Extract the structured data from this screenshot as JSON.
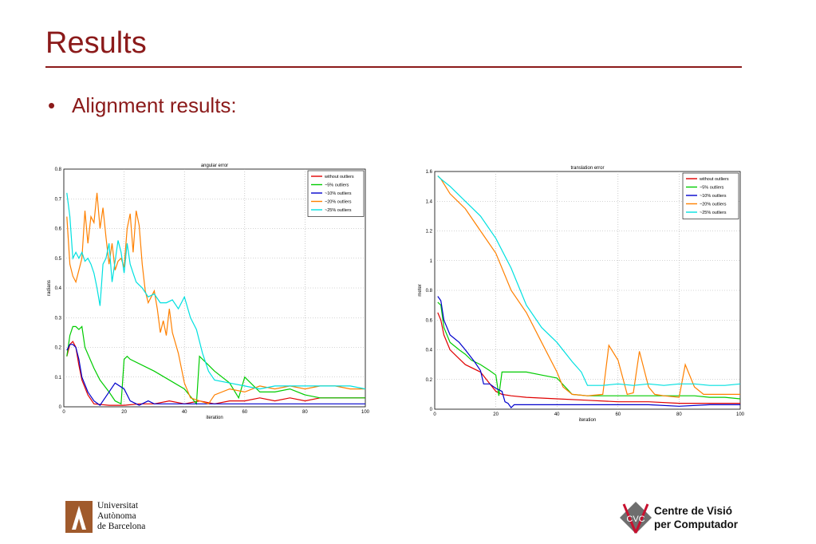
{
  "slide": {
    "title": "Results",
    "bullet": "•",
    "bullet_text": "Alignment results:",
    "title_color": "#8b1a1a"
  },
  "footer": {
    "uab_line1": "Universitat",
    "uab_line2": "Autònoma",
    "uab_line3": "de Barcelona",
    "cvc_line1": "Centre de Visió",
    "cvc_line2": "per Computador",
    "cvc_logo_letters": "CVC"
  },
  "chart_data": [
    {
      "type": "line",
      "title": "angular error",
      "xlabel": "iteration",
      "ylabel": "radians",
      "xlim": [
        0,
        100
      ],
      "ylim": [
        0,
        0.8
      ],
      "xticks": [
        0,
        20,
        40,
        60,
        80,
        100
      ],
      "yticks": [
        0,
        0.1,
        0.2,
        0.3,
        0.4,
        0.5,
        0.6,
        0.7,
        0.8
      ],
      "ytick_labels": [
        "0",
        "0.1",
        "0.2",
        "0.3",
        "0.4",
        "0.5",
        "0.6",
        "0.7",
        "0.8"
      ],
      "grid": true,
      "legend_position": "top-right",
      "series": [
        {
          "name": "without outliers",
          "color": "#e00000",
          "x": [
            1,
            2,
            3,
            4,
            5,
            6,
            8,
            10,
            15,
            20,
            25,
            30,
            35,
            40,
            45,
            50,
            55,
            60,
            65,
            70,
            75,
            80,
            85,
            90,
            95,
            100
          ],
          "y": [
            0.17,
            0.21,
            0.22,
            0.2,
            0.14,
            0.09,
            0.04,
            0.01,
            0.005,
            0.005,
            0.01,
            0.01,
            0.02,
            0.01,
            0.02,
            0.01,
            0.02,
            0.02,
            0.03,
            0.02,
            0.03,
            0.02,
            0.03,
            0.03,
            0.03,
            0.03
          ]
        },
        {
          "name": "~5% outliers",
          "color": "#00cc00",
          "x": [
            1,
            2,
            3,
            4,
            5,
            6,
            7,
            10,
            12,
            15,
            17,
            19,
            20,
            21,
            22,
            30,
            40,
            44,
            45,
            47,
            50,
            55,
            58,
            60,
            65,
            70,
            75,
            80,
            85,
            90,
            95,
            100
          ],
          "y": [
            0.17,
            0.24,
            0.27,
            0.27,
            0.26,
            0.27,
            0.2,
            0.13,
            0.09,
            0.05,
            0.02,
            0.01,
            0.16,
            0.17,
            0.16,
            0.12,
            0.06,
            0.01,
            0.17,
            0.15,
            0.12,
            0.08,
            0.03,
            0.1,
            0.05,
            0.05,
            0.06,
            0.04,
            0.03,
            0.03,
            0.03,
            0.03
          ]
        },
        {
          "name": "~10% outliers",
          "color": "#0000cc",
          "x": [
            1,
            2,
            3,
            4,
            5,
            6,
            8,
            10,
            12,
            15,
            17,
            20,
            22,
            25,
            28,
            30,
            35,
            40,
            50,
            60,
            70,
            80,
            90,
            100
          ],
          "y": [
            0.19,
            0.21,
            0.21,
            0.2,
            0.16,
            0.1,
            0.05,
            0.02,
            0.005,
            0.05,
            0.08,
            0.06,
            0.02,
            0.005,
            0.02,
            0.01,
            0.01,
            0.01,
            0.01,
            0.01,
            0.01,
            0.01,
            0.01,
            0.01
          ]
        },
        {
          "name": "~20% outliers",
          "color": "#ff8000",
          "x": [
            1,
            2,
            3,
            4,
            5,
            6,
            7,
            8,
            9,
            10,
            11,
            12,
            13,
            14,
            15,
            16,
            17,
            18,
            19,
            20,
            21,
            22,
            23,
            24,
            25,
            26,
            27,
            28,
            29,
            30,
            31,
            32,
            33,
            34,
            35,
            36,
            38,
            40,
            42,
            45,
            48,
            50,
            55,
            60,
            65,
            70,
            75,
            80,
            85,
            90,
            95,
            100
          ],
          "y": [
            0.64,
            0.48,
            0.44,
            0.42,
            0.46,
            0.5,
            0.66,
            0.55,
            0.64,
            0.62,
            0.72,
            0.6,
            0.67,
            0.57,
            0.48,
            0.55,
            0.46,
            0.49,
            0.5,
            0.47,
            0.6,
            0.65,
            0.52,
            0.66,
            0.61,
            0.48,
            0.39,
            0.35,
            0.37,
            0.39,
            0.33,
            0.25,
            0.29,
            0.24,
            0.33,
            0.25,
            0.18,
            0.08,
            0.03,
            0.02,
            0.01,
            0.04,
            0.06,
            0.05,
            0.07,
            0.06,
            0.07,
            0.06,
            0.07,
            0.07,
            0.06,
            0.06
          ]
        },
        {
          "name": "~25% outliers",
          "color": "#00e0e0",
          "x": [
            1,
            2,
            3,
            4,
            5,
            6,
            7,
            8,
            9,
            10,
            11,
            12,
            13,
            14,
            15,
            16,
            17,
            18,
            19,
            20,
            21,
            22,
            23,
            24,
            25,
            26,
            28,
            30,
            32,
            34,
            36,
            38,
            40,
            42,
            44,
            46,
            48,
            50,
            55,
            60,
            65,
            70,
            75,
            80,
            85,
            90,
            95,
            100
          ],
          "y": [
            0.72,
            0.64,
            0.5,
            0.52,
            0.5,
            0.52,
            0.49,
            0.5,
            0.48,
            0.45,
            0.4,
            0.34,
            0.48,
            0.5,
            0.55,
            0.42,
            0.49,
            0.56,
            0.52,
            0.45,
            0.55,
            0.48,
            0.45,
            0.42,
            0.41,
            0.4,
            0.37,
            0.38,
            0.35,
            0.35,
            0.36,
            0.33,
            0.37,
            0.3,
            0.26,
            0.18,
            0.12,
            0.09,
            0.08,
            0.07,
            0.06,
            0.07,
            0.07,
            0.07,
            0.07,
            0.07,
            0.07,
            0.06
          ]
        }
      ]
    },
    {
      "type": "line",
      "title": "translation error",
      "xlabel": "iteration",
      "ylabel": "meter",
      "xlim": [
        0,
        100
      ],
      "ylim": [
        0,
        1.6
      ],
      "xticks": [
        0,
        20,
        40,
        60,
        80,
        100
      ],
      "yticks": [
        0,
        0.2,
        0.4,
        0.6,
        0.8,
        1,
        1.2,
        1.4,
        1.6
      ],
      "ytick_labels": [
        "0",
        "0.2",
        "0.4",
        "0.6",
        "0.8",
        "1",
        "1.2",
        "1.4",
        "1.6"
      ],
      "grid": true,
      "legend_position": "top-right",
      "series": [
        {
          "name": "without outliers",
          "color": "#e00000",
          "x": [
            1,
            2,
            3,
            5,
            8,
            10,
            15,
            20,
            22,
            25,
            30,
            40,
            50,
            60,
            70,
            80,
            90,
            100
          ],
          "y": [
            0.65,
            0.6,
            0.5,
            0.4,
            0.34,
            0.3,
            0.25,
            0.12,
            0.1,
            0.09,
            0.08,
            0.07,
            0.06,
            0.05,
            0.05,
            0.04,
            0.04,
            0.04
          ]
        },
        {
          "name": "~5% outliers",
          "color": "#00cc00",
          "x": [
            1,
            2,
            3,
            5,
            8,
            10,
            12,
            15,
            18,
            20,
            21,
            22,
            25,
            30,
            35,
            40,
            45,
            50,
            55,
            60,
            65,
            70,
            75,
            80,
            85,
            90,
            95,
            100
          ],
          "y": [
            0.72,
            0.7,
            0.55,
            0.45,
            0.4,
            0.37,
            0.33,
            0.3,
            0.26,
            0.23,
            0.09,
            0.25,
            0.25,
            0.25,
            0.23,
            0.21,
            0.1,
            0.09,
            0.09,
            0.09,
            0.09,
            0.09,
            0.09,
            0.09,
            0.09,
            0.08,
            0.08,
            0.07
          ]
        },
        {
          "name": "~10% outliers",
          "color": "#0000cc",
          "x": [
            1,
            2,
            3,
            5,
            8,
            10,
            13,
            15,
            16,
            18,
            20,
            22,
            23,
            24,
            25,
            26,
            30,
            40,
            50,
            60,
            70,
            80,
            90,
            100
          ],
          "y": [
            0.76,
            0.73,
            0.6,
            0.5,
            0.45,
            0.4,
            0.32,
            0.26,
            0.17,
            0.17,
            0.14,
            0.12,
            0.05,
            0.04,
            0.01,
            0.03,
            0.03,
            0.03,
            0.03,
            0.03,
            0.03,
            0.02,
            0.03,
            0.03
          ]
        },
        {
          "name": "~20% outliers",
          "color": "#ff8000",
          "x": [
            1,
            2,
            5,
            10,
            15,
            20,
            25,
            30,
            35,
            40,
            42,
            45,
            50,
            55,
            57,
            60,
            63,
            65,
            67,
            70,
            72,
            75,
            80,
            82,
            85,
            88,
            90,
            95,
            100
          ],
          "y": [
            1.57,
            1.55,
            1.45,
            1.35,
            1.2,
            1.05,
            0.8,
            0.65,
            0.45,
            0.25,
            0.15,
            0.1,
            0.09,
            0.1,
            0.43,
            0.33,
            0.1,
            0.11,
            0.39,
            0.15,
            0.1,
            0.09,
            0.08,
            0.3,
            0.15,
            0.1,
            0.1,
            0.1,
            0.1
          ]
        },
        {
          "name": "~25% outliers",
          "color": "#00e0e0",
          "x": [
            1,
            2,
            5,
            10,
            15,
            20,
            25,
            30,
            35,
            40,
            45,
            48,
            50,
            55,
            60,
            65,
            70,
            75,
            80,
            85,
            90,
            95,
            100
          ],
          "y": [
            1.57,
            1.55,
            1.5,
            1.4,
            1.3,
            1.15,
            0.95,
            0.7,
            0.55,
            0.45,
            0.32,
            0.25,
            0.16,
            0.16,
            0.17,
            0.16,
            0.17,
            0.16,
            0.17,
            0.17,
            0.16,
            0.16,
            0.17
          ]
        }
      ]
    }
  ]
}
